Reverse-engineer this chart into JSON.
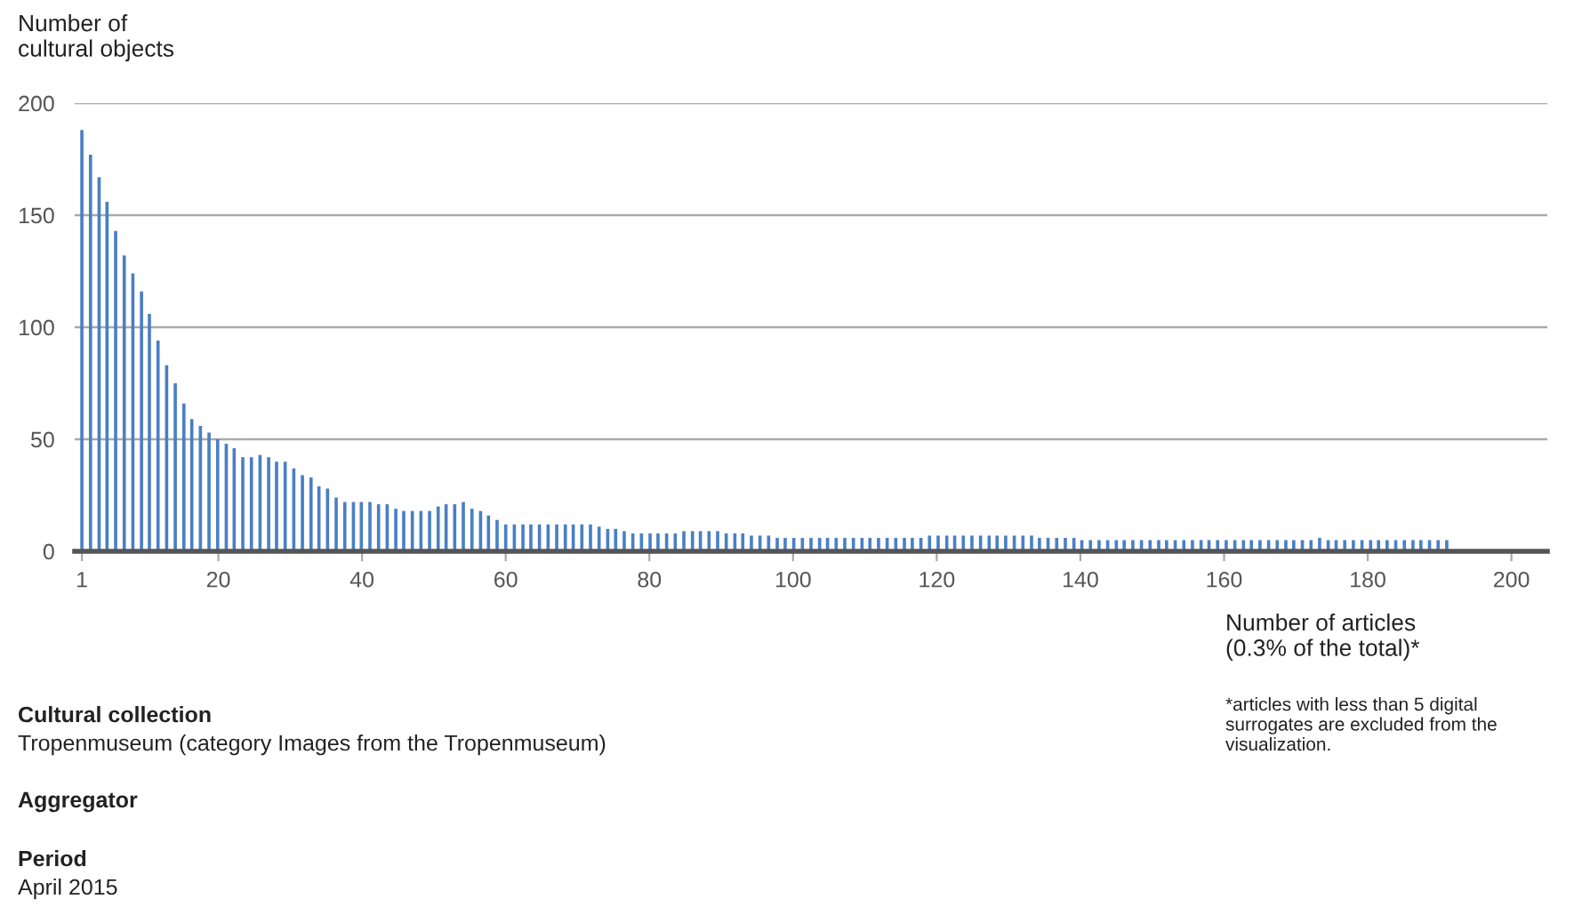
{
  "chart_data": {
    "type": "bar",
    "ylabel": "Number of\ncultural objects",
    "xlabel": "Number of articles\n(0.3% of the total)*",
    "x": [
      1.0,
      2.2,
      3.4,
      4.5,
      5.7,
      6.9,
      8.1,
      9.3,
      10.4,
      11.6,
      12.8,
      14.0,
      15.2,
      16.3,
      17.5,
      18.7,
      19.9,
      21.1,
      22.2,
      23.4,
      24.6,
      25.8,
      27.0,
      28.1,
      29.3,
      30.5,
      31.7,
      32.9,
      34.0,
      35.2,
      36.4,
      37.6,
      38.8,
      39.9,
      41.1,
      42.3,
      43.5,
      44.7,
      45.8,
      47.0,
      48.2,
      49.4,
      50.6,
      51.7,
      52.9,
      54.1,
      55.3,
      56.5,
      57.6,
      58.8,
      60.0,
      61.2,
      62.4,
      63.5,
      64.7,
      65.9,
      67.1,
      68.3,
      69.4,
      70.6,
      71.8,
      73.0,
      74.2,
      75.3,
      76.5,
      77.7,
      78.9,
      80.1,
      81.2,
      82.4,
      83.6,
      84.8,
      86.0,
      87.1,
      88.3,
      89.5,
      90.7,
      91.9,
      93.0,
      94.2,
      95.4,
      96.6,
      97.8,
      98.9,
      100.1,
      101.3,
      102.5,
      103.7,
      104.8,
      106.0,
      107.2,
      108.4,
      109.6,
      110.7,
      111.9,
      113.1,
      114.3,
      115.5,
      116.6,
      117.8,
      119.0,
      120.2,
      121.4,
      122.5,
      123.7,
      124.9,
      126.1,
      127.3,
      128.4,
      129.6,
      130.8,
      132.0,
      133.2,
      134.3,
      135.5,
      136.7,
      137.9,
      139.1,
      140.2,
      141.4,
      142.6,
      143.8,
      145.0,
      146.1,
      147.3,
      148.5,
      149.7,
      150.9,
      152.0,
      153.2,
      154.4,
      155.6,
      156.8,
      157.9,
      159.1,
      160.3,
      161.5,
      162.7,
      163.8,
      165.0,
      166.2,
      167.4,
      168.6,
      169.7,
      170.9,
      172.1,
      173.3,
      174.5,
      175.6,
      176.8,
      178.0,
      179.2,
      180.4,
      181.5,
      182.7,
      183.9,
      185.1,
      186.3,
      187.4,
      188.6,
      189.8,
      191.0
    ],
    "values": [
      188,
      177,
      167,
      156,
      143,
      132,
      124,
      116,
      106,
      94,
      83,
      75,
      66,
      59,
      56,
      53,
      50,
      48,
      46,
      42,
      42,
      43,
      42,
      40,
      40,
      37,
      34,
      33,
      29,
      28,
      24,
      22,
      22,
      22,
      22,
      21,
      21,
      19,
      18,
      18,
      18,
      18,
      20,
      21,
      21,
      22,
      19,
      18,
      16,
      14,
      12,
      12,
      12,
      12,
      12,
      12,
      12,
      12,
      12,
      12,
      12,
      11,
      10,
      10,
      9,
      8,
      8,
      8,
      8,
      8,
      8,
      9,
      9,
      9,
      9,
      9,
      8,
      8,
      8,
      7,
      7,
      7,
      6,
      6,
      6,
      6,
      6,
      6,
      6,
      6,
      6,
      6,
      6,
      6,
      6,
      6,
      6,
      6,
      6,
      6,
      7,
      7,
      7,
      7,
      7,
      7,
      7,
      7,
      7,
      7,
      7,
      7,
      7,
      6,
      6,
      6,
      6,
      6,
      5,
      5,
      5,
      5,
      5,
      5,
      5,
      5,
      5,
      5,
      5,
      5,
      5,
      5,
      5,
      5,
      5,
      5,
      5,
      5,
      5,
      5,
      5,
      5,
      5,
      5,
      5,
      5,
      6,
      5,
      5,
      5,
      5,
      5,
      5,
      5,
      5,
      5,
      5,
      5,
      5,
      5,
      5,
      5
    ],
    "color": "#4a7fc4",
    "xlim": [
      0,
      205
    ],
    "xticks": [
      1,
      20,
      40,
      60,
      80,
      100,
      120,
      140,
      160,
      180,
      200
    ],
    "ylim": [
      0,
      200
    ],
    "yticks": [
      0,
      50,
      100,
      150,
      200
    ],
    "grid": "y",
    "annotations": [
      "Cultural collection",
      "Tropenmuseum (category Images from the Tropenmuseum)",
      "Aggregator",
      "Period",
      "April 2015",
      "*articles with less than 5 digital\nsurrogates are excluded from the\nvisualization."
    ]
  }
}
